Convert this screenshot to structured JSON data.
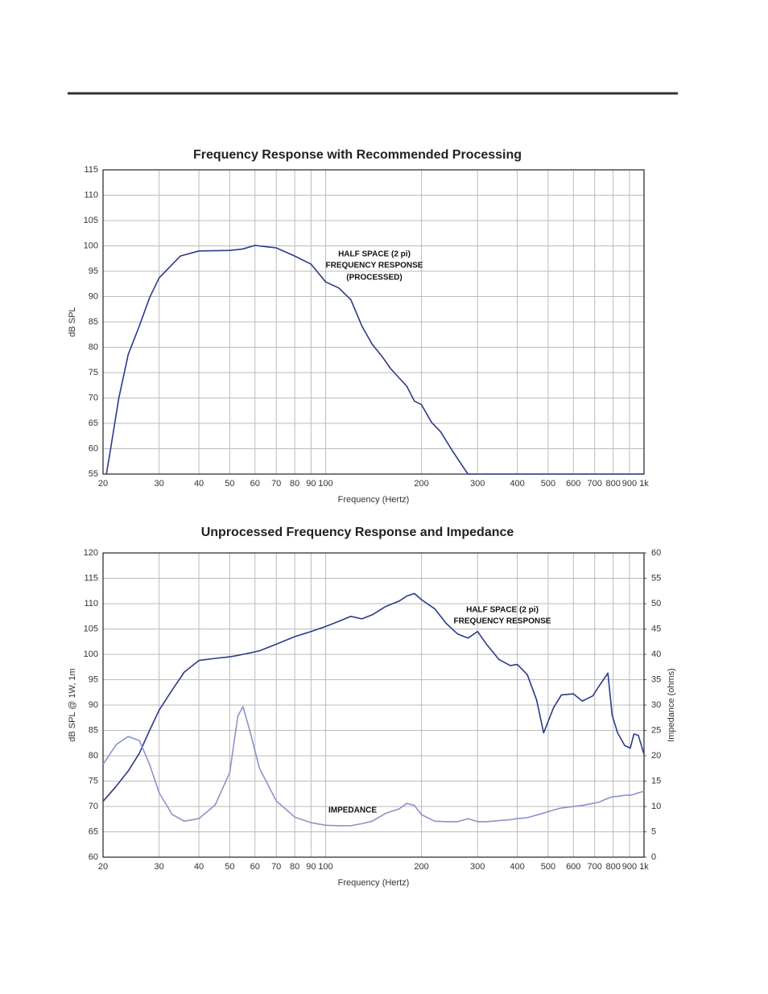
{
  "chart_data": [
    {
      "type": "line",
      "title": "Frequency Response with Recommended Processing",
      "xlabel": "Frequency (Hertz)",
      "ylabel": "dB SPL",
      "xscale": "log",
      "grid": true,
      "xlim": [
        20,
        1000
      ],
      "ylim": [
        55,
        115
      ],
      "xticks": [
        20,
        30,
        40,
        50,
        60,
        70,
        80,
        90,
        100,
        200,
        300,
        400,
        500,
        600,
        700,
        800,
        900,
        {
          "value": 1000,
          "label": "1k"
        }
      ],
      "yticks": [
        55,
        60,
        65,
        70,
        75,
        80,
        85,
        90,
        95,
        100,
        105,
        110,
        115
      ],
      "annotations": [
        "HALF SPACE (2 pi)",
        "FREQUENCY RESPONSE",
        "(PROCESSED)"
      ],
      "x": [
        20.5,
        21,
        22.4,
        24,
        26,
        28,
        30,
        35,
        40,
        50,
        55,
        60,
        70,
        80,
        90,
        100,
        110,
        120,
        130,
        140,
        150,
        160,
        180,
        190,
        200,
        215,
        230,
        250,
        265,
        280,
        1000
      ],
      "series": [
        {
          "color": "#2b3a8a",
          "values": [
            55,
            59,
            69.9,
            78.6,
            84.2,
            89.8,
            93.7,
            98,
            99,
            99.1,
            99.4,
            100.1,
            99.6,
            98,
            96.4,
            92.9,
            91.7,
            89.4,
            84.2,
            80.6,
            78.3,
            75.8,
            72.3,
            69.4,
            68.7,
            65.2,
            63.3,
            59.6,
            57.2,
            55,
            55
          ]
        }
      ]
    },
    {
      "type": "line",
      "title": "Unprocessed Frequency Response and Impedance",
      "xlabel": "Frequency (Hertz)",
      "ylabel": "dB SPL @ 1W, 1m",
      "y2label": "Impedance (ohms)",
      "xscale": "log",
      "grid": true,
      "xlim": [
        20,
        1000
      ],
      "ylim": [
        60,
        120
      ],
      "y2lim": [
        0,
        60
      ],
      "xticks": [
        20,
        30,
        40,
        50,
        60,
        70,
        80,
        90,
        100,
        200,
        300,
        400,
        500,
        600,
        700,
        800,
        900,
        {
          "value": 1000,
          "label": "1k"
        }
      ],
      "yticks": [
        60,
        65,
        70,
        75,
        80,
        85,
        90,
        95,
        100,
        105,
        110,
        115,
        120
      ],
      "y2ticks": [
        0,
        5,
        10,
        15,
        20,
        25,
        30,
        35,
        40,
        45,
        50,
        55,
        60
      ],
      "annotations": [
        "HALF SPACE (2 pi)",
        "FREQUENCY RESPONSE",
        "IMPEDANCE"
      ],
      "x": [
        20,
        22,
        24,
        26,
        28,
        30,
        33,
        36,
        40,
        45,
        50,
        53,
        55,
        58,
        62,
        70,
        80,
        90,
        100,
        110,
        120,
        130,
        140,
        155,
        170,
        180,
        190,
        200,
        220,
        240,
        260,
        280,
        300,
        320,
        350,
        380,
        400,
        430,
        460,
        484,
        520,
        550,
        600,
        640,
        690,
        718,
        770,
        794,
        826,
        870,
        905,
        930,
        960,
        1000
      ],
      "series": [
        {
          "color": "#2b3a8a",
          "values": [
            71,
            74,
            77,
            80.5,
            85,
            89,
            93,
            96.5,
            98.8,
            99.2,
            99.5,
            99.8,
            100,
            100.3,
            100.7,
            102,
            103.5,
            104.5,
            105.5,
            106.5,
            107.5,
            107,
            107.8,
            109.5,
            110.5,
            111.5,
            112,
            110.8,
            109,
            106,
            104,
            103.2,
            104.5,
            102,
            99,
            97.8,
            98,
            96,
            91,
            84.5,
            89.5,
            92,
            92.2,
            90.8,
            91.8,
            93.5,
            96.3,
            88,
            84.5,
            82,
            81.5,
            84.3,
            84,
            80.3
          ]
        },
        {
          "color": "#8a94c8",
          "axis": "y2",
          "values": [
            18.3,
            22.2,
            23.8,
            23,
            18.3,
            12.7,
            8.4,
            7.1,
            7.6,
            10.3,
            16.7,
            27.8,
            29.7,
            24.6,
            17.5,
            11.1,
            7.9,
            6.8,
            6.3,
            6.2,
            6.2,
            6.6,
            7.1,
            8.7,
            9.5,
            10.6,
            10.2,
            8.4,
            7.1,
            7,
            7,
            7.6,
            7,
            7,
            7.2,
            7.4,
            7.6,
            7.8,
            8.3,
            8.7,
            9.3,
            9.7,
            10,
            10.2,
            10.6,
            10.8,
            11.6,
            11.9,
            12,
            12.2,
            12.2,
            12.4,
            12.7,
            13
          ]
        }
      ]
    }
  ]
}
